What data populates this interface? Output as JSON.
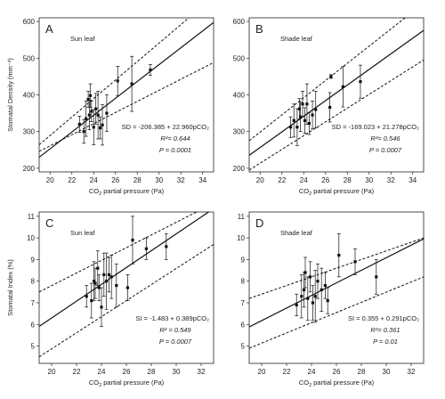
{
  "figure": {
    "colors": {
      "line": "#111111",
      "point": "#111111",
      "frame": "#222222"
    }
  },
  "chart_data": [
    {
      "type": "scatter",
      "panel_letter": "A",
      "title": "Sun leaf",
      "xlabel": "CO2 partial pressure (Pa)",
      "ylabel": "Stomatal Density (mm⁻²)",
      "xlim": [
        19,
        35
      ],
      "ylim": [
        190,
        610
      ],
      "xticks": [
        20,
        22,
        24,
        26,
        28,
        30,
        32,
        34
      ],
      "yticks": [
        200,
        300,
        400,
        500,
        600
      ],
      "regression": {
        "intercept": -206.385,
        "slope": 22.96
      },
      "ci_upper": [
        [
          19,
          264
        ],
        [
          35,
          667
        ]
      ],
      "ci_lower": [
        [
          19,
          246
        ],
        [
          35,
          488
        ]
      ],
      "annotations": {
        "equation": "SD = -206.385 + 22.960pCO₂",
        "r2": "R²= 0.644",
        "p": "P = 0.0001"
      },
      "points": [
        {
          "x": 22.7,
          "y": 320,
          "err": 22
        },
        {
          "x": 23.1,
          "y": 300,
          "err": 32
        },
        {
          "x": 23.3,
          "y": 335,
          "err": 48
        },
        {
          "x": 23.5,
          "y": 388,
          "err": 22
        },
        {
          "x": 23.6,
          "y": 345,
          "err": 40
        },
        {
          "x": 23.7,
          "y": 398,
          "err": 32
        },
        {
          "x": 23.8,
          "y": 355,
          "err": 28
        },
        {
          "x": 24.0,
          "y": 312,
          "err": 48
        },
        {
          "x": 24.2,
          "y": 362,
          "err": 42
        },
        {
          "x": 24.4,
          "y": 345,
          "err": 65
        },
        {
          "x": 24.6,
          "y": 310,
          "err": 30
        },
        {
          "x": 24.8,
          "y": 318,
          "err": 55
        },
        {
          "x": 25.2,
          "y": 350,
          "err": 50
        },
        {
          "x": 26.2,
          "y": 438,
          "err": 40
        },
        {
          "x": 27.5,
          "y": 430,
          "err": 75
        },
        {
          "x": 29.2,
          "y": 468,
          "err": 15
        }
      ]
    },
    {
      "type": "scatter",
      "panel_letter": "B",
      "title": "Shade leaf",
      "xlabel": "CO2 partial pressure (Pa)",
      "ylabel": "",
      "xlim": [
        19,
        35
      ],
      "ylim": [
        190,
        610
      ],
      "xticks": [
        20,
        22,
        24,
        26,
        28,
        30,
        32,
        34
      ],
      "yticks": [
        200,
        300,
        400,
        500,
        600
      ],
      "regression": {
        "intercept": -169.023,
        "slope": 21.278
      },
      "ci_upper": [
        [
          19,
          275
        ],
        [
          35,
          650
        ]
      ],
      "ci_lower": [
        [
          19,
          195
        ],
        [
          35,
          495
        ]
      ],
      "annotations": {
        "equation": "SD = -169.023 + 21.278pCO₂",
        "r2": "R²= 0.546",
        "p": "P = 0.0007"
      },
      "points": [
        {
          "x": 22.8,
          "y": 312,
          "err": 28
        },
        {
          "x": 23.1,
          "y": 330,
          "err": 45
        },
        {
          "x": 23.4,
          "y": 312,
          "err": 50
        },
        {
          "x": 23.6,
          "y": 362,
          "err": 28
        },
        {
          "x": 23.7,
          "y": 340,
          "err": 40
        },
        {
          "x": 23.9,
          "y": 375,
          "err": 35
        },
        {
          "x": 24.1,
          "y": 330,
          "err": 35
        },
        {
          "x": 24.3,
          "y": 375,
          "err": 55
        },
        {
          "x": 24.5,
          "y": 322,
          "err": 30
        },
        {
          "x": 24.8,
          "y": 345,
          "err": 38
        },
        {
          "x": 25.1,
          "y": 360,
          "err": 50
        },
        {
          "x": 26.4,
          "y": 366,
          "err": 40
        },
        {
          "x": 26.5,
          "y": 450,
          "err": 5
        },
        {
          "x": 27.6,
          "y": 422,
          "err": 55
        },
        {
          "x": 29.2,
          "y": 436,
          "err": 45
        }
      ]
    },
    {
      "type": "scatter",
      "panel_letter": "C",
      "title": "Sun leaf",
      "xlabel": "CO2 partial pressure (Pa)",
      "ylabel": "Stomatal Index (%)",
      "xlim": [
        19,
        33
      ],
      "ylim": [
        4.2,
        11.2
      ],
      "xticks": [
        20,
        22,
        24,
        26,
        28,
        30,
        32
      ],
      "yticks": [
        5,
        6,
        7,
        8,
        9,
        10,
        11
      ],
      "regression": {
        "intercept": -1.483,
        "slope": 0.389
      },
      "ci_upper": [
        [
          19,
          7.5
        ],
        [
          33,
          11.6
        ]
      ],
      "ci_lower": [
        [
          19,
          4.5
        ],
        [
          33,
          9.7
        ]
      ],
      "annotations": {
        "equation": "SI = -1.483 + 0.389pCO₂",
        "r2": "R² = 0.549",
        "p": "P = 0.0007"
      },
      "points": [
        {
          "x": 22.8,
          "y": 7.3,
          "err": 0.5
        },
        {
          "x": 23.2,
          "y": 7.1,
          "err": 0.8
        },
        {
          "x": 23.4,
          "y": 8.0,
          "err": 0.9
        },
        {
          "x": 23.5,
          "y": 7.9,
          "err": 0.7
        },
        {
          "x": 23.7,
          "y": 8.6,
          "err": 0.8
        },
        {
          "x": 23.8,
          "y": 7.7,
          "err": 0.6
        },
        {
          "x": 24.0,
          "y": 6.8,
          "err": 0.9
        },
        {
          "x": 24.2,
          "y": 8.3,
          "err": 1.0
        },
        {
          "x": 24.4,
          "y": 8.0,
          "err": 1.3
        },
        {
          "x": 24.6,
          "y": 8.3,
          "err": 0.8
        },
        {
          "x": 24.8,
          "y": 8.2,
          "err": 1.0
        },
        {
          "x": 25.2,
          "y": 7.8,
          "err": 1.0
        },
        {
          "x": 26.1,
          "y": 7.7,
          "err": 0.6
        },
        {
          "x": 26.5,
          "y": 9.9,
          "err": 1.1
        },
        {
          "x": 27.6,
          "y": 9.5,
          "err": 0.5
        },
        {
          "x": 29.2,
          "y": 9.6,
          "err": 0.6
        }
      ]
    },
    {
      "type": "scatter",
      "panel_letter": "D",
      "title": "Shade leaf",
      "xlabel": "CO2 partial pressure (Pa)",
      "ylabel": "",
      "xlim": [
        19,
        33
      ],
      "ylim": [
        4.2,
        11.2
      ],
      "xticks": [
        20,
        22,
        24,
        26,
        28,
        30,
        32
      ],
      "yticks": [
        5,
        6,
        7,
        8,
        9,
        10,
        11
      ],
      "regression": {
        "intercept": 0.355,
        "slope": 0.291
      },
      "ci_upper": [
        [
          19,
          7.2
        ],
        [
          33,
          10.0
        ]
      ],
      "ci_lower": [
        [
          19,
          4.9
        ],
        [
          33,
          8.2
        ]
      ],
      "annotations": {
        "equation": "SI = 0.355 + 0.291pCO₂",
        "r2": "R²= 0.361",
        "p": "P = 0.01"
      },
      "points": [
        {
          "x": 22.8,
          "y": 6.9,
          "err": 0.5
        },
        {
          "x": 23.2,
          "y": 7.3,
          "err": 1.0
        },
        {
          "x": 23.4,
          "y": 7.6,
          "err": 0.8
        },
        {
          "x": 23.5,
          "y": 8.4,
          "err": 0.7
        },
        {
          "x": 23.7,
          "y": 7.2,
          "err": 1.0
        },
        {
          "x": 23.9,
          "y": 8.2,
          "err": 0.7
        },
        {
          "x": 24.1,
          "y": 7.0,
          "err": 0.8
        },
        {
          "x": 24.3,
          "y": 7.3,
          "err": 1.2
        },
        {
          "x": 24.5,
          "y": 8.0,
          "err": 0.8
        },
        {
          "x": 24.8,
          "y": 7.6,
          "err": 1.0
        },
        {
          "x": 25.1,
          "y": 7.8,
          "err": 0.6
        },
        {
          "x": 25.3,
          "y": 7.1,
          "err": 0.6
        },
        {
          "x": 26.2,
          "y": 9.2,
          "err": 1.0
        },
        {
          "x": 27.5,
          "y": 8.9,
          "err": 0.6
        },
        {
          "x": 29.2,
          "y": 8.2,
          "err": 0.8
        }
      ]
    }
  ]
}
